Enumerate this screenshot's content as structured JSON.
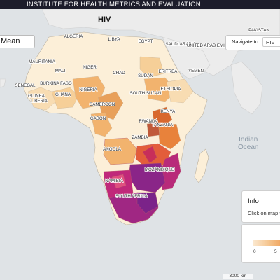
{
  "header": {
    "org_name": "INSTITUTE FOR HEALTH METRICS AND EVALUATION"
  },
  "map": {
    "title": "HIV",
    "measure_tab": "Mean",
    "ocean_labels": {
      "indian_ocean_1": "Indian",
      "indian_ocean_2": "Ocean"
    },
    "country_labels": [
      "ALGERIA",
      "LIBYA",
      "EGYPT",
      "SAUDI ARABIA",
      "UNITED ARAB EMIRATES",
      "PAKISTAN",
      "MAURITANIA",
      "MALI",
      "NIGER",
      "CHAD",
      "SUDAN",
      "ERITREA",
      "YEMEN",
      "SENEGAL",
      "GUINEA",
      "BURKINA FASO",
      "NIGERIA",
      "ETHIOPIA",
      "SOUTH SUDAN",
      "LIBERIA",
      "GHANA",
      "CAMEROON",
      "GABON",
      "KENYA",
      "RWANDA",
      "TANZANIA",
      "ANGOLA",
      "ZAMBIA",
      "MOZAMBIQUE",
      "NAMIBIA",
      "SOUTH AFRICA"
    ]
  },
  "navigation": {
    "label": "Navigate to:",
    "selected": "HIV"
  },
  "info": {
    "title": "Info",
    "hint": "Click on map to"
  },
  "legend": {
    "ticks": [
      "0",
      "5"
    ]
  },
  "scale": {
    "label": "3000 km"
  },
  "colors": {
    "ocean": "#dfe3e6",
    "land_outside": "#ececec",
    "low": "#fcefd8",
    "light": "#f8dcb2",
    "mid": "#f2b36e",
    "orange": "#e8823b",
    "red": "#d04a4a",
    "magenta": "#c0287a",
    "purple": "#7b2389"
  }
}
